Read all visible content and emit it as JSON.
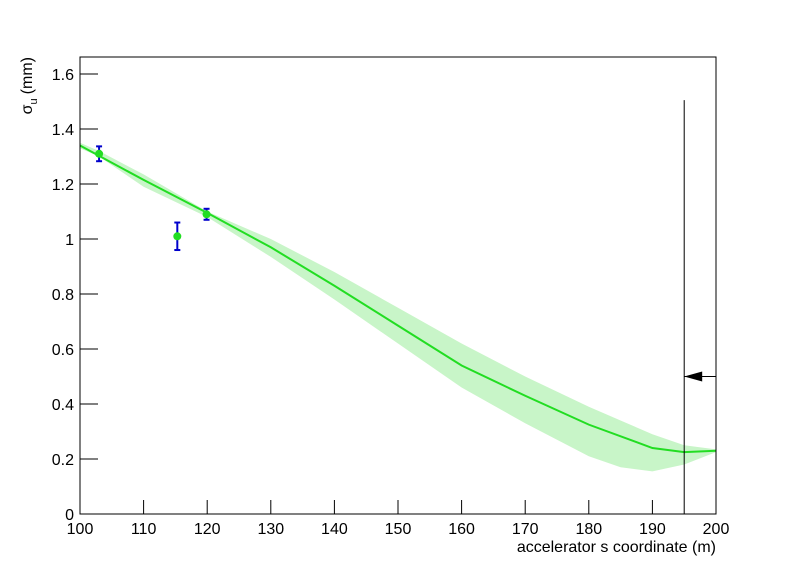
{
  "chart_data": {
    "type": "line",
    "xlabel": "accelerator s coordinate (m)",
    "ylabel": {
      "symbol": "σ",
      "subscript": "u",
      "unit": "(mm)"
    },
    "xlim": [
      100,
      200
    ],
    "ylim": [
      0,
      1.662
    ],
    "xticks": [
      100,
      110,
      120,
      130,
      140,
      150,
      160,
      170,
      180,
      190,
      200
    ],
    "yticks": [
      0,
      0.2,
      0.4,
      0.6,
      0.8,
      1,
      1.2,
      1.4,
      1.6
    ],
    "measurements": {
      "color": "#22dd22",
      "error_color": "#0000cc",
      "x": [
        103,
        115.3,
        119.9
      ],
      "values": [
        1.31,
        1.01,
        1.09
      ],
      "errors": [
        0.027,
        0.05,
        0.02
      ]
    },
    "fit": {
      "color": "#22dd22",
      "x": [
        100,
        110,
        120,
        130,
        140,
        150,
        160,
        170,
        180,
        190,
        195,
        200
      ],
      "values": [
        1.34,
        1.215,
        1.095,
        0.97,
        0.83,
        0.685,
        0.54,
        0.43,
        0.325,
        0.24,
        0.225,
        0.23
      ]
    },
    "band": {
      "color": "#c8f5c8",
      "x": [
        100,
        103,
        110,
        120,
        130,
        140,
        150,
        160,
        170,
        180,
        185,
        190,
        195,
        200
      ],
      "upper": [
        1.35,
        1.32,
        1.235,
        1.1,
        1.0,
        0.88,
        0.75,
        0.62,
        0.5,
        0.39,
        0.34,
        0.29,
        0.25,
        0.235
      ],
      "lower": [
        1.33,
        1.3,
        1.19,
        1.08,
        0.935,
        0.78,
        0.62,
        0.46,
        0.33,
        0.21,
        0.17,
        0.155,
        0.18,
        0.225
      ]
    },
    "marker_line": {
      "x": 195,
      "top": 1.505,
      "arrow_y": 0.5,
      "arrow_from": 200
    }
  }
}
